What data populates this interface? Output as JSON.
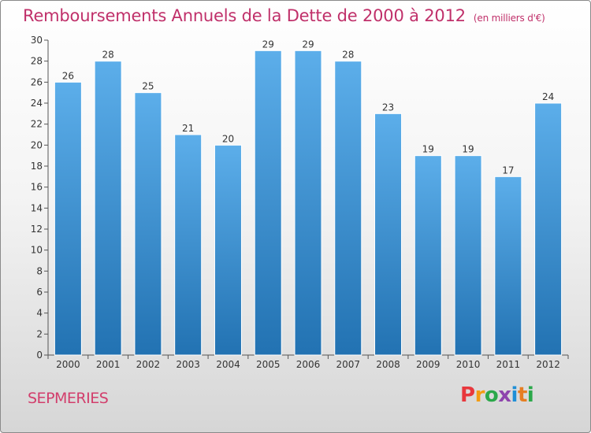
{
  "header": {
    "title": "Remboursements Annuels de la Dette de 2000 à 2012",
    "unit": "(en milliers d'€)"
  },
  "footer": {
    "city": "SEPMERIES",
    "logo": "Proxiti",
    "logo_colors": [
      "#e8383d",
      "#f39c12",
      "#2ba84a",
      "#8e44ad",
      "#1f8fd6",
      "#e67e22",
      "#2ba84a"
    ]
  },
  "colors": {
    "title": "#c0306a",
    "bar_top": "#5caeea",
    "bar_bottom": "#2272b2",
    "axis": "#555555",
    "grid": "#cccccc"
  },
  "chart_data": {
    "type": "bar",
    "title": "Remboursements Annuels de la Dette de 2000 à 2012",
    "subtitle": "(en milliers d'€)",
    "categories": [
      "2000",
      "2001",
      "2002",
      "2003",
      "2004",
      "2005",
      "2006",
      "2007",
      "2008",
      "2009",
      "2010",
      "2011",
      "2012"
    ],
    "values": [
      26,
      28,
      25,
      21,
      20,
      29,
      29,
      28,
      23,
      19,
      19,
      17,
      24
    ],
    "ylim": [
      0,
      30
    ],
    "yticks": [
      0,
      2,
      4,
      6,
      8,
      10,
      12,
      14,
      16,
      18,
      20,
      22,
      24,
      26,
      28,
      30
    ],
    "xlabel": "",
    "ylabel": "",
    "grid": false,
    "data_labels": true
  }
}
